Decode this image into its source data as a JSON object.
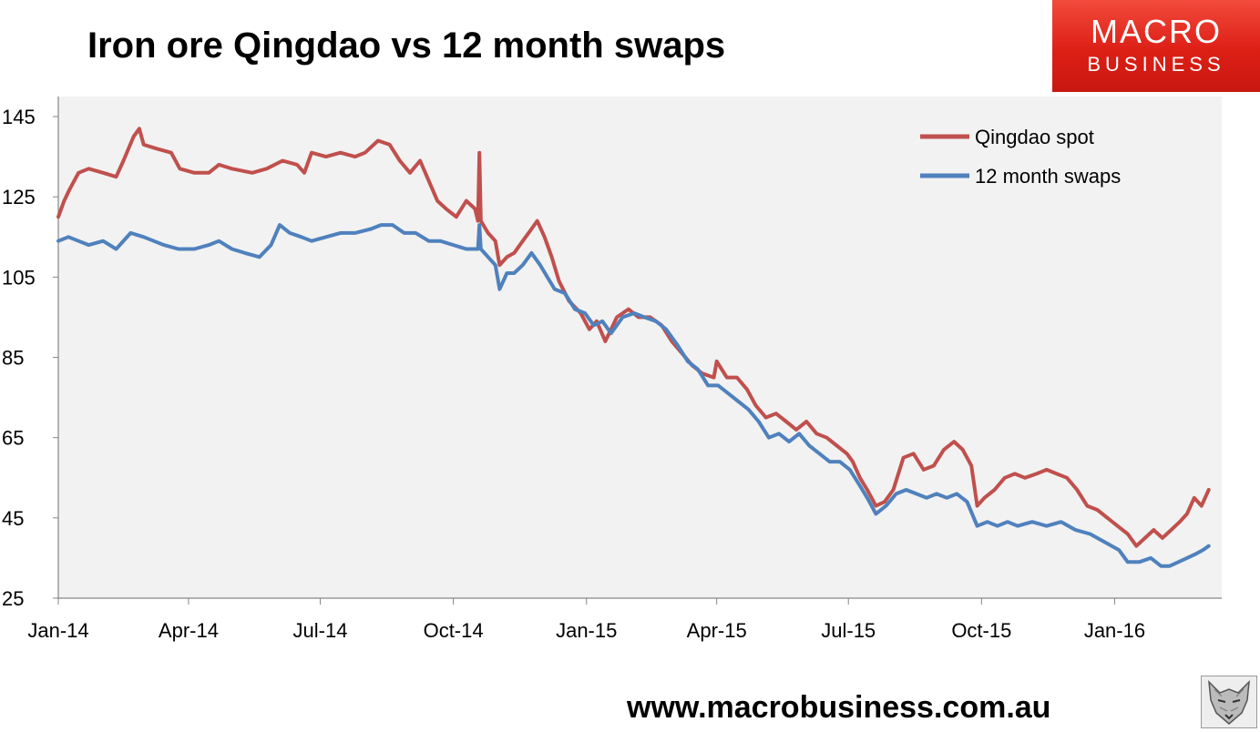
{
  "header": {
    "title": "Iron ore Qingdao vs 12 month swaps"
  },
  "logo": {
    "line1": "MACRO",
    "line2": "BUSINESS"
  },
  "footer": {
    "url": "www.macrobusiness.com.au"
  },
  "colors": {
    "qingdao": "#c0504d",
    "swaps": "#4f81bd",
    "plot_bg": "#f2f2f2",
    "logo_red": "#e2261c"
  },
  "icons": {
    "brand": "wolf-icon"
  },
  "chart_data": {
    "type": "line",
    "title": "Iron ore Qingdao vs 12 month swaps",
    "xlabel": "",
    "ylabel": "",
    "ylim": [
      25,
      150
    ],
    "xlim": [
      "2014-01-01",
      "2016-03-15"
    ],
    "y_ticks": [
      25,
      45,
      65,
      85,
      105,
      125,
      145
    ],
    "x_ticks": [
      {
        "date": "2014-01-01",
        "label": "Jan-14"
      },
      {
        "date": "2014-04-01",
        "label": "Apr-14"
      },
      {
        "date": "2014-07-01",
        "label": "Jul-14"
      },
      {
        "date": "2014-10-01",
        "label": "Oct-14"
      },
      {
        "date": "2015-01-01",
        "label": "Jan-15"
      },
      {
        "date": "2015-04-01",
        "label": "Apr-15"
      },
      {
        "date": "2015-07-01",
        "label": "Jul-15"
      },
      {
        "date": "2015-10-01",
        "label": "Oct-15"
      },
      {
        "date": "2016-01-01",
        "label": "Jan-16"
      }
    ],
    "grid": false,
    "legend": "top-right",
    "series": [
      {
        "name": "Qingdao spot",
        "points": [
          [
            "2014-01-01",
            120
          ],
          [
            "2014-01-05",
            124
          ],
          [
            "2014-01-09",
            127
          ],
          [
            "2014-01-15",
            131
          ],
          [
            "2014-01-22",
            132
          ],
          [
            "2014-02-01",
            131
          ],
          [
            "2014-02-10",
            130
          ],
          [
            "2014-02-15",
            134
          ],
          [
            "2014-02-22",
            140
          ],
          [
            "2014-02-26",
            142
          ],
          [
            "2014-03-01",
            138
          ],
          [
            "2014-03-10",
            137
          ],
          [
            "2014-03-20",
            136
          ],
          [
            "2014-03-26",
            132
          ],
          [
            "2014-04-05",
            131
          ],
          [
            "2014-04-15",
            131
          ],
          [
            "2014-04-22",
            133
          ],
          [
            "2014-05-01",
            132
          ],
          [
            "2014-05-15",
            131
          ],
          [
            "2014-05-25",
            132
          ],
          [
            "2014-06-05",
            134
          ],
          [
            "2014-06-15",
            133
          ],
          [
            "2014-06-20",
            131
          ],
          [
            "2014-06-25",
            136
          ],
          [
            "2014-07-05",
            135
          ],
          [
            "2014-07-15",
            136
          ],
          [
            "2014-07-25",
            135
          ],
          [
            "2014-08-01",
            136
          ],
          [
            "2014-08-10",
            139
          ],
          [
            "2014-08-18",
            138
          ],
          [
            "2014-08-25",
            134
          ],
          [
            "2014-09-01",
            131
          ],
          [
            "2014-09-08",
            134
          ],
          [
            "2014-09-14",
            129
          ],
          [
            "2014-09-20",
            124
          ],
          [
            "2014-09-26",
            122
          ],
          [
            "2014-10-03",
            120
          ],
          [
            "2014-10-10",
            124
          ],
          [
            "2014-10-16",
            122
          ],
          [
            "2014-10-18",
            119
          ],
          [
            "2014-10-19",
            136
          ],
          [
            "2014-10-20",
            119
          ],
          [
            "2014-10-25",
            116
          ],
          [
            "2014-10-30",
            114
          ],
          [
            "2014-11-02",
            108
          ],
          [
            "2014-11-07",
            110
          ],
          [
            "2014-11-12",
            111
          ],
          [
            "2014-11-18",
            114
          ],
          [
            "2014-11-24",
            117
          ],
          [
            "2014-11-28",
            119
          ],
          [
            "2014-12-03",
            115
          ],
          [
            "2014-12-08",
            110
          ],
          [
            "2014-12-13",
            104
          ],
          [
            "2014-12-20",
            99
          ],
          [
            "2014-12-28",
            96
          ],
          [
            "2015-01-03",
            92
          ],
          [
            "2015-01-08",
            94
          ],
          [
            "2015-01-14",
            89
          ],
          [
            "2015-01-22",
            95
          ],
          [
            "2015-01-30",
            97
          ],
          [
            "2015-02-06",
            95
          ],
          [
            "2015-02-14",
            95
          ],
          [
            "2015-02-22",
            93
          ],
          [
            "2015-03-01",
            89
          ],
          [
            "2015-03-08",
            86
          ],
          [
            "2015-03-15",
            83
          ],
          [
            "2015-03-22",
            81
          ],
          [
            "2015-03-30",
            80
          ],
          [
            "2015-04-01",
            84
          ],
          [
            "2015-04-08",
            80
          ],
          [
            "2015-04-15",
            80
          ],
          [
            "2015-04-22",
            77
          ],
          [
            "2015-04-28",
            73
          ],
          [
            "2015-05-05",
            70
          ],
          [
            "2015-05-12",
            71
          ],
          [
            "2015-05-19",
            69
          ],
          [
            "2015-05-26",
            67
          ],
          [
            "2015-06-02",
            69
          ],
          [
            "2015-06-09",
            66
          ],
          [
            "2015-06-16",
            65
          ],
          [
            "2015-06-23",
            63
          ],
          [
            "2015-06-30",
            61
          ],
          [
            "2015-07-04",
            59
          ],
          [
            "2015-07-09",
            55
          ],
          [
            "2015-07-14",
            52
          ],
          [
            "2015-07-20",
            48
          ],
          [
            "2015-07-26",
            49
          ],
          [
            "2015-08-01",
            52
          ],
          [
            "2015-08-08",
            60
          ],
          [
            "2015-08-15",
            61
          ],
          [
            "2015-08-22",
            57
          ],
          [
            "2015-08-29",
            58
          ],
          [
            "2015-09-05",
            62
          ],
          [
            "2015-09-12",
            64
          ],
          [
            "2015-09-18",
            62
          ],
          [
            "2015-09-24",
            58
          ],
          [
            "2015-09-28",
            48
          ],
          [
            "2015-10-03",
            50
          ],
          [
            "2015-10-10",
            52
          ],
          [
            "2015-10-17",
            55
          ],
          [
            "2015-10-24",
            56
          ],
          [
            "2015-10-31",
            55
          ],
          [
            "2015-11-08",
            56
          ],
          [
            "2015-11-15",
            57
          ],
          [
            "2015-11-22",
            56
          ],
          [
            "2015-11-29",
            55
          ],
          [
            "2015-12-06",
            52
          ],
          [
            "2015-12-13",
            48
          ],
          [
            "2015-12-20",
            47
          ],
          [
            "2015-12-27",
            45
          ],
          [
            "2016-01-03",
            43
          ],
          [
            "2016-01-10",
            41
          ],
          [
            "2016-01-16",
            38
          ],
          [
            "2016-01-22",
            40
          ],
          [
            "2016-01-28",
            42
          ],
          [
            "2016-02-03",
            40
          ],
          [
            "2016-02-09",
            42
          ],
          [
            "2016-02-15",
            44
          ],
          [
            "2016-02-20",
            46
          ],
          [
            "2016-02-25",
            50
          ],
          [
            "2016-03-01",
            48
          ],
          [
            "2016-03-06",
            52
          ]
        ]
      },
      {
        "name": "12 month swaps",
        "points": [
          [
            "2014-01-01",
            114
          ],
          [
            "2014-01-08",
            115
          ],
          [
            "2014-01-15",
            114
          ],
          [
            "2014-01-22",
            113
          ],
          [
            "2014-02-01",
            114
          ],
          [
            "2014-02-10",
            112
          ],
          [
            "2014-02-20",
            116
          ],
          [
            "2014-03-01",
            115
          ],
          [
            "2014-03-08",
            114
          ],
          [
            "2014-03-15",
            113
          ],
          [
            "2014-03-25",
            112
          ],
          [
            "2014-04-05",
            112
          ],
          [
            "2014-04-15",
            113
          ],
          [
            "2014-04-22",
            114
          ],
          [
            "2014-05-01",
            112
          ],
          [
            "2014-05-10",
            111
          ],
          [
            "2014-05-20",
            110
          ],
          [
            "2014-05-28",
            113
          ],
          [
            "2014-06-03",
            118
          ],
          [
            "2014-06-10",
            116
          ],
          [
            "2014-06-18",
            115
          ],
          [
            "2014-06-25",
            114
          ],
          [
            "2014-07-05",
            115
          ],
          [
            "2014-07-15",
            116
          ],
          [
            "2014-07-25",
            116
          ],
          [
            "2014-08-05",
            117
          ],
          [
            "2014-08-12",
            118
          ],
          [
            "2014-08-20",
            118
          ],
          [
            "2014-08-28",
            116
          ],
          [
            "2014-09-05",
            116
          ],
          [
            "2014-09-14",
            114
          ],
          [
            "2014-09-22",
            114
          ],
          [
            "2014-10-01",
            113
          ],
          [
            "2014-10-10",
            112
          ],
          [
            "2014-10-18",
            112
          ],
          [
            "2014-10-19",
            118
          ],
          [
            "2014-10-20",
            112
          ],
          [
            "2014-10-25",
            110
          ],
          [
            "2014-10-30",
            108
          ],
          [
            "2014-11-02",
            102
          ],
          [
            "2014-11-07",
            106
          ],
          [
            "2014-11-12",
            106
          ],
          [
            "2014-11-18",
            108
          ],
          [
            "2014-11-24",
            111
          ],
          [
            "2014-11-30",
            108
          ],
          [
            "2014-12-05",
            105
          ],
          [
            "2014-12-10",
            102
          ],
          [
            "2014-12-17",
            101
          ],
          [
            "2014-12-24",
            97
          ],
          [
            "2014-12-31",
            96
          ],
          [
            "2015-01-06",
            93
          ],
          [
            "2015-01-12",
            94
          ],
          [
            "2015-01-18",
            91
          ],
          [
            "2015-01-26",
            95
          ],
          [
            "2015-02-03",
            96
          ],
          [
            "2015-02-10",
            95
          ],
          [
            "2015-02-18",
            94
          ],
          [
            "2015-02-25",
            92
          ],
          [
            "2015-03-05",
            88
          ],
          [
            "2015-03-12",
            84
          ],
          [
            "2015-03-19",
            82
          ],
          [
            "2015-03-26",
            78
          ],
          [
            "2015-04-02",
            78
          ],
          [
            "2015-04-09",
            76
          ],
          [
            "2015-04-16",
            74
          ],
          [
            "2015-04-23",
            72
          ],
          [
            "2015-04-30",
            69
          ],
          [
            "2015-05-07",
            65
          ],
          [
            "2015-05-14",
            66
          ],
          [
            "2015-05-21",
            64
          ],
          [
            "2015-05-28",
            66
          ],
          [
            "2015-06-04",
            63
          ],
          [
            "2015-06-11",
            61
          ],
          [
            "2015-06-18",
            59
          ],
          [
            "2015-06-25",
            59
          ],
          [
            "2015-07-02",
            57
          ],
          [
            "2015-07-09",
            53
          ],
          [
            "2015-07-14",
            50
          ],
          [
            "2015-07-20",
            46
          ],
          [
            "2015-07-27",
            48
          ],
          [
            "2015-08-03",
            51
          ],
          [
            "2015-08-10",
            52
          ],
          [
            "2015-08-17",
            51
          ],
          [
            "2015-08-24",
            50
          ],
          [
            "2015-08-31",
            51
          ],
          [
            "2015-09-07",
            50
          ],
          [
            "2015-09-14",
            51
          ],
          [
            "2015-09-21",
            49
          ],
          [
            "2015-09-28",
            43
          ],
          [
            "2015-10-05",
            44
          ],
          [
            "2015-10-12",
            43
          ],
          [
            "2015-10-19",
            44
          ],
          [
            "2015-10-26",
            43
          ],
          [
            "2015-11-05",
            44
          ],
          [
            "2015-11-15",
            43
          ],
          [
            "2015-11-25",
            44
          ],
          [
            "2015-12-05",
            42
          ],
          [
            "2015-12-15",
            41
          ],
          [
            "2015-12-25",
            39
          ],
          [
            "2016-01-04",
            37
          ],
          [
            "2016-01-10",
            34
          ],
          [
            "2016-01-18",
            34
          ],
          [
            "2016-01-26",
            35
          ],
          [
            "2016-02-02",
            33
          ],
          [
            "2016-02-08",
            33
          ],
          [
            "2016-02-14",
            34
          ],
          [
            "2016-02-20",
            35
          ],
          [
            "2016-02-26",
            36
          ],
          [
            "2016-03-02",
            37
          ],
          [
            "2016-03-06",
            38
          ]
        ]
      }
    ]
  }
}
